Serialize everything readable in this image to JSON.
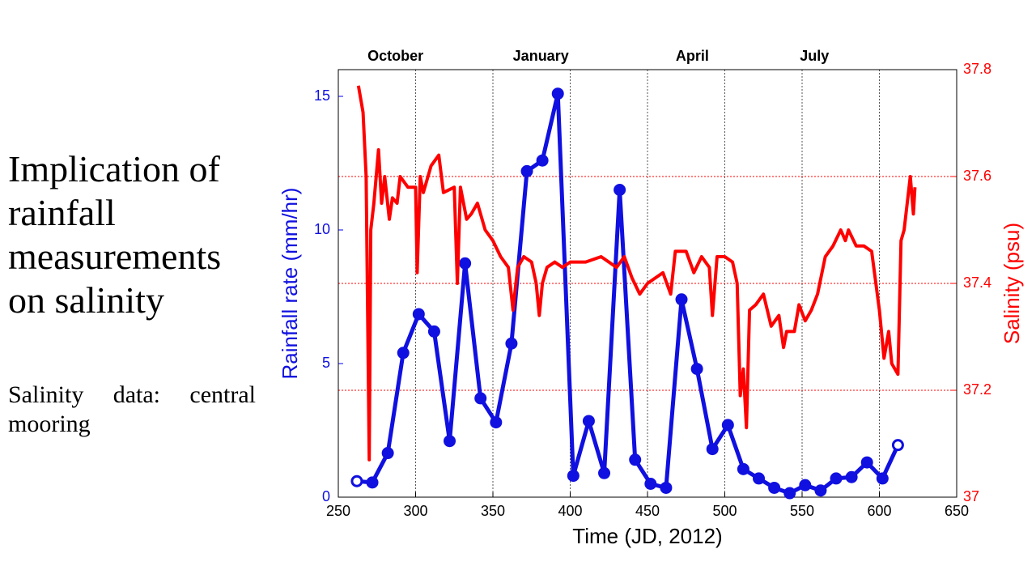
{
  "title": "Implication of rainfall measurements on salinity",
  "subtitle": "Salinity data: central mooring",
  "chart_data": {
    "type": "line",
    "xlabel": "Time (JD, 2012)",
    "ylabel": "Rainfall rate (mm/hr)",
    "y2label": "Salinity (psu)",
    "xlim": [
      250,
      650
    ],
    "xticks": [
      250,
      300,
      350,
      400,
      450,
      500,
      550,
      600,
      650
    ],
    "ylim": [
      0,
      16
    ],
    "yticks": [
      0,
      5,
      10,
      15
    ],
    "y2lim": [
      37,
      37.8
    ],
    "y2ticks": [
      37,
      37.2,
      37.4,
      37.6,
      37.8
    ],
    "grid": true,
    "annotations": [
      {
        "text": "October",
        "x": 287
      },
      {
        "text": "January",
        "x": 381
      },
      {
        "text": "April",
        "x": 479
      },
      {
        "text": "July",
        "x": 558
      }
    ],
    "series": [
      {
        "name": "Rainfall rate",
        "color": "#1010e0",
        "axis": "y",
        "markers": true,
        "x": [
          262,
          272,
          282,
          292,
          302,
          312,
          322,
          332,
          342,
          352,
          362,
          372,
          382,
          392,
          402,
          412,
          422,
          432,
          442,
          452,
          462,
          472,
          482,
          492,
          502,
          512,
          522,
          532,
          542,
          552,
          562,
          572,
          582,
          592,
          602,
          612
        ],
        "values": [
          0.6,
          0.55,
          1.65,
          5.4,
          6.85,
          6.2,
          2.1,
          8.75,
          3.7,
          2.8,
          5.75,
          12.2,
          12.6,
          15.1,
          0.8,
          2.85,
          0.9,
          11.5,
          1.4,
          0.5,
          0.35,
          7.4,
          4.8,
          1.8,
          2.7,
          1.05,
          0.7,
          0.35,
          0.15,
          0.45,
          0.25,
          0.7,
          0.75,
          1.3,
          0.7,
          1.95
        ]
      },
      {
        "name": "Salinity",
        "color": "#ff0000",
        "axis": "y2",
        "markers": false,
        "x": [
          263,
          266,
          268,
          270,
          271,
          273,
          276,
          278,
          280,
          283,
          285,
          288,
          290,
          295,
          300,
          301,
          303,
          305,
          310,
          315,
          318,
          325,
          327,
          329,
          333,
          336,
          340,
          345,
          350,
          355,
          360,
          363,
          366,
          370,
          375,
          378,
          380,
          382,
          385,
          390,
          395,
          400,
          410,
          420,
          425,
          430,
          435,
          440,
          445,
          450,
          455,
          460,
          465,
          468,
          475,
          480,
          485,
          490,
          492,
          495,
          500,
          505,
          508,
          510,
          512,
          514,
          516,
          520,
          525,
          530,
          535,
          538,
          540,
          545,
          548,
          552,
          556,
          560,
          565,
          570,
          575,
          578,
          580,
          585,
          590,
          595,
          600,
          603,
          606,
          608,
          612,
          614,
          616,
          618,
          620,
          622,
          623
        ],
        "values": [
          37.77,
          37.72,
          37.6,
          37.07,
          37.5,
          37.55,
          37.65,
          37.55,
          37.6,
          37.52,
          37.56,
          37.55,
          37.6,
          37.58,
          37.58,
          37.42,
          37.6,
          37.57,
          37.62,
          37.64,
          37.57,
          37.58,
          37.4,
          37.58,
          37.52,
          37.53,
          37.55,
          37.5,
          37.48,
          37.45,
          37.43,
          37.35,
          37.43,
          37.45,
          37.44,
          37.4,
          37.34,
          37.4,
          37.43,
          37.44,
          37.43,
          37.44,
          37.44,
          37.45,
          37.44,
          37.43,
          37.45,
          37.41,
          37.38,
          37.4,
          37.41,
          37.42,
          37.38,
          37.46,
          37.46,
          37.42,
          37.45,
          37.43,
          37.34,
          37.45,
          37.45,
          37.44,
          37.4,
          37.19,
          37.24,
          37.13,
          37.35,
          37.36,
          37.38,
          37.32,
          37.34,
          37.28,
          37.31,
          37.31,
          37.36,
          37.33,
          37.35,
          37.38,
          37.45,
          37.47,
          37.5,
          37.48,
          37.5,
          37.47,
          37.47,
          37.46,
          37.35,
          37.26,
          37.31,
          37.25,
          37.23,
          37.48,
          37.5,
          37.55,
          37.6,
          37.53,
          37.58
        ]
      }
    ]
  }
}
